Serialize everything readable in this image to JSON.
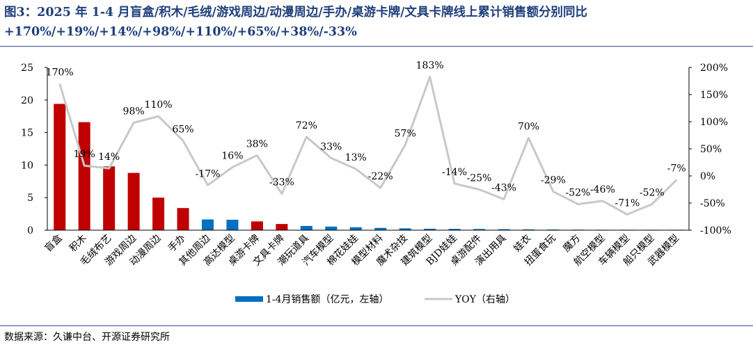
{
  "header": {
    "title": "图3：2025 年 1-4 月盲盒/积木/毛绒/游戏周边/动漫周边/手办/桌游卡牌/文具卡牌线上累计销售额分别同比+170%/+19%/+14%/+98%/+110%/+65%/+38%/-33%"
  },
  "footer": {
    "source": "数据来源：久谦中台、开源证券研究所"
  },
  "colors": {
    "highlight_bar": "#c00000",
    "other_bar": "#0070c0",
    "yoy_line": "#c8c8c8",
    "title": "#1f3f7a"
  },
  "chart_data": {
    "type": "bar",
    "categories": [
      "盲盒",
      "积木",
      "毛绒布艺",
      "游戏周边",
      "动漫周边",
      "手办",
      "其他周边",
      "高达模型",
      "桌游卡牌",
      "文具卡牌",
      "潮玩道具",
      "汽车模型",
      "棉花娃娃",
      "模型材料",
      "魔术杂技",
      "建筑模型",
      "BJD娃娃",
      "桌游配件",
      "演出用具",
      "娃衣",
      "扭蛋食玩",
      "魔方",
      "航空模型",
      "车辆模型",
      "船只模型",
      "武器模型"
    ],
    "series": [
      {
        "name": "1-4月销售额（亿元，左轴）",
        "type": "bar",
        "axis": "left",
        "values": [
          19.4,
          16.6,
          9.8,
          8.8,
          5.0,
          3.4,
          1.65,
          1.6,
          1.35,
          0.95,
          0.65,
          0.55,
          0.45,
          0.35,
          0.28,
          0.22,
          0.2,
          0.18,
          0.15,
          0.12,
          0.1,
          0.08,
          0.06,
          0.05,
          0.04,
          0.03
        ],
        "highlighted": [
          true,
          true,
          true,
          true,
          true,
          true,
          false,
          false,
          true,
          true,
          false,
          false,
          false,
          false,
          false,
          false,
          false,
          false,
          false,
          false,
          false,
          false,
          false,
          false,
          false,
          false
        ]
      },
      {
        "name": "YOY（右轴）",
        "type": "line",
        "axis": "right",
        "values": [
          170,
          19,
          14,
          98,
          110,
          65,
          -17,
          16,
          38,
          -33,
          72,
          33,
          13,
          -22,
          57,
          183,
          -14,
          -25,
          -43,
          70,
          -29,
          -52,
          -46,
          -71,
          -52,
          -7
        ],
        "labels": [
          "170%",
          "19%",
          "14%",
          "98%",
          "110%",
          "65%",
          "-17%",
          "16%",
          "38%",
          "-33%",
          "72%",
          "33%",
          "13%",
          "-22%",
          "57%",
          "183%",
          "-14%",
          "-25%",
          "-43%",
          "70%",
          "-29%",
          "-52%",
          "-46%",
          "-71%",
          "-52%",
          "-7%"
        ]
      }
    ],
    "y_left": {
      "range": [
        0,
        25
      ],
      "ticks": [
        "0",
        "5",
        "10",
        "15",
        "20",
        "25"
      ]
    },
    "y_right": {
      "range": [
        -100,
        200
      ],
      "ticks": [
        "-100%",
        "-50%",
        "0%",
        "50%",
        "100%",
        "150%",
        "200%"
      ]
    },
    "legend": {
      "placement": "bottom-center"
    },
    "grid": false
  }
}
